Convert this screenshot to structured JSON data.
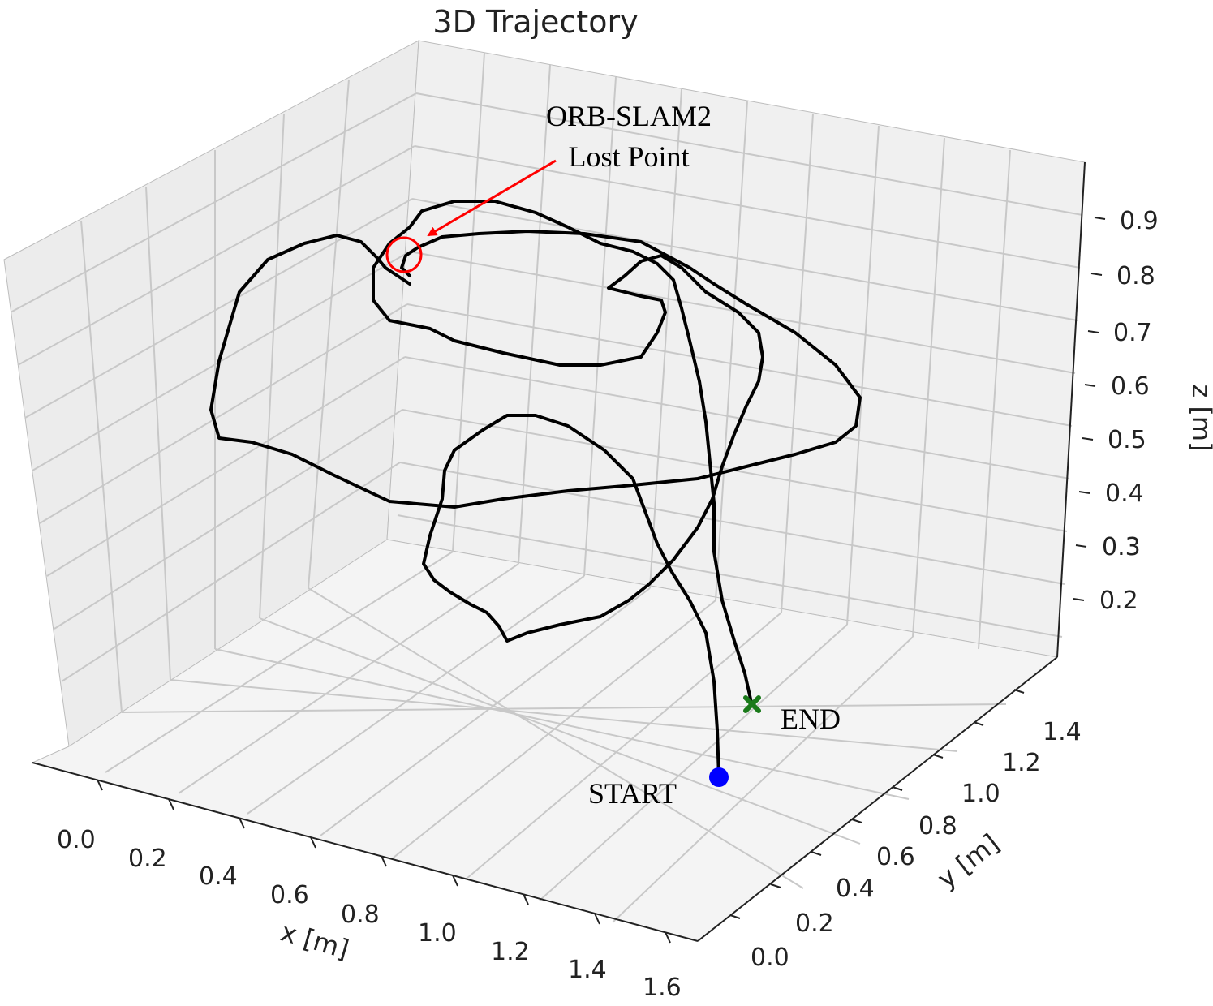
{
  "chart_data": {
    "type": "line",
    "projection": "3d",
    "title": "3D Trajectory",
    "xlabel": "x [m]",
    "ylabel": "y [m]",
    "zlabel": "z [m]",
    "xlim": [
      -0.1,
      1.6
    ],
    "ylim": [
      0.0,
      1.5
    ],
    "zlim": [
      0.1,
      1.0
    ],
    "x_ticks": [
      "0.0",
      "0.2",
      "0.4",
      "0.6",
      "0.8",
      "1.0",
      "1.2",
      "1.4",
      "1.6"
    ],
    "y_ticks": [
      "0.0",
      "0.2",
      "0.4",
      "0.6",
      "0.8",
      "1.0",
      "1.2",
      "1.4"
    ],
    "z_ticks": [
      "0.2",
      "0.3",
      "0.4",
      "0.5",
      "0.6",
      "0.7",
      "0.8",
      "0.9"
    ],
    "grid": true,
    "series": [
      {
        "color": "#000000",
        "path_2d_estimate": [
          [
            886,
            958
          ],
          [
            884,
            900
          ],
          [
            880,
            840
          ],
          [
            870,
            780
          ],
          [
            850,
            740
          ],
          [
            828,
            705
          ],
          [
            810,
            670
          ],
          [
            795,
            630
          ],
          [
            780,
            590
          ],
          [
            745,
            555
          ],
          [
            700,
            525
          ],
          [
            660,
            512
          ],
          [
            625,
            512
          ],
          [
            595,
            530
          ],
          [
            560,
            555
          ],
          [
            548,
            580
          ],
          [
            545,
            615
          ],
          [
            530,
            660
          ],
          [
            522,
            695
          ],
          [
            535,
            715
          ],
          [
            555,
            730
          ],
          [
            580,
            745
          ],
          [
            600,
            755
          ],
          [
            615,
            772
          ],
          [
            625,
            790
          ],
          [
            650,
            780
          ],
          [
            690,
            770
          ],
          [
            740,
            760
          ],
          [
            775,
            740
          ],
          [
            800,
            720
          ],
          [
            830,
            690
          ],
          [
            860,
            650
          ],
          [
            878,
            615
          ],
          [
            890,
            575
          ],
          [
            905,
            535
          ],
          [
            920,
            500
          ],
          [
            935,
            470
          ],
          [
            940,
            440
          ],
          [
            935,
            410
          ],
          [
            910,
            385
          ],
          [
            870,
            360
          ],
          [
            840,
            330
          ],
          [
            815,
            315
          ],
          [
            790,
            322
          ],
          [
            770,
            340
          ],
          [
            750,
            355
          ],
          [
            790,
            365
          ],
          [
            815,
            370
          ],
          [
            820,
            385
          ],
          [
            810,
            410
          ],
          [
            790,
            440
          ],
          [
            740,
            450
          ],
          [
            690,
            450
          ],
          [
            620,
            435
          ],
          [
            560,
            420
          ],
          [
            530,
            405
          ],
          [
            480,
            395
          ],
          [
            460,
            370
          ],
          [
            460,
            330
          ],
          [
            480,
            300
          ],
          [
            505,
            280
          ],
          [
            520,
            260
          ],
          [
            560,
            248
          ],
          [
            610,
            248
          ],
          [
            660,
            262
          ],
          [
            700,
            280
          ],
          [
            740,
            300
          ],
          [
            780,
            310
          ],
          [
            810,
            325
          ],
          [
            830,
            345
          ],
          [
            840,
            380
          ],
          [
            850,
            420
          ],
          [
            862,
            470
          ],
          [
            870,
            520
          ],
          [
            875,
            570
          ],
          [
            880,
            620
          ],
          [
            880,
            680
          ],
          [
            890,
            740
          ],
          [
            905,
            790
          ],
          [
            918,
            830
          ],
          [
            926,
            866
          ]
        ],
        "path_2d_estimate_2": [
          [
            505,
            340
          ],
          [
            495,
            330
          ],
          [
            500,
            315
          ],
          [
            515,
            305
          ],
          [
            545,
            292
          ],
          [
            590,
            288
          ],
          [
            650,
            285
          ],
          [
            720,
            288
          ],
          [
            790,
            298
          ],
          [
            850,
            330
          ],
          [
            880,
            350
          ],
          [
            920,
            375
          ],
          [
            980,
            410
          ],
          [
            1030,
            450
          ],
          [
            1060,
            490
          ],
          [
            1055,
            525
          ],
          [
            1030,
            545
          ],
          [
            980,
            560
          ],
          [
            920,
            575
          ],
          [
            860,
            590
          ],
          [
            780,
            598
          ],
          [
            700,
            605
          ],
          [
            620,
            615
          ],
          [
            560,
            625
          ],
          [
            480,
            618
          ],
          [
            410,
            585
          ],
          [
            360,
            560
          ],
          [
            310,
            545
          ],
          [
            270,
            540
          ],
          [
            260,
            505
          ],
          [
            270,
            445
          ],
          [
            295,
            360
          ],
          [
            330,
            320
          ],
          [
            375,
            300
          ],
          [
            415,
            290
          ],
          [
            445,
            298
          ],
          [
            465,
            318
          ],
          [
            475,
            330
          ],
          [
            490,
            340
          ],
          [
            505,
            350
          ]
        ]
      }
    ],
    "markers": [
      {
        "label": "START",
        "color": "#0000ff",
        "shape": "circle"
      },
      {
        "label": "END",
        "color": "#1a7a1a",
        "shape": "x"
      }
    ],
    "annotations": [
      {
        "text_line1": "ORB-SLAM2",
        "text_line2": "Lost Point",
        "arrow_color": "#ff0000"
      }
    ]
  }
}
